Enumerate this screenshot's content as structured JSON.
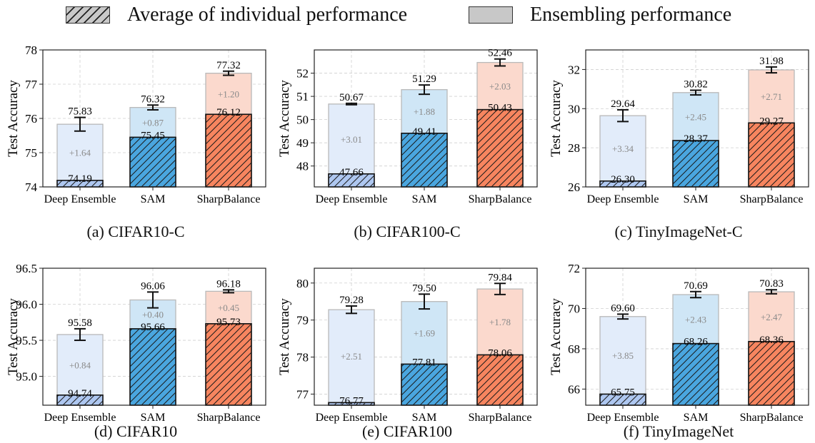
{
  "legend": {
    "individual_label": "Average of individual performance",
    "ensemble_label": "Ensembling performance"
  },
  "colors": {
    "deep_ensemble": "#aec7f0",
    "sam": "#4aa6df",
    "sharpbalance": "#f7855f",
    "deep_ensemble_light": "#e2ecfa",
    "sam_light": "#cfe6f6",
    "sharpbalance_light": "#fbd9cd"
  },
  "chart_data": [
    {
      "type": "bar",
      "caption": "(a) CIFAR10-C",
      "ylabel": "Test Accuracy",
      "categories": [
        "Deep Ensemble",
        "SAM",
        "SharpBalance"
      ],
      "ylim": [
        74,
        78
      ],
      "yticks": [
        "74",
        "75",
        "76",
        "77",
        "78"
      ],
      "series": [
        {
          "name": "Average of individual performance",
          "values": [
            74.19,
            75.45,
            76.12
          ]
        },
        {
          "name": "Ensembling performance",
          "values": [
            75.83,
            76.32,
            77.32
          ]
        }
      ],
      "gain_labels": [
        "+1.64",
        "+0.87",
        "+1.20"
      ],
      "individual_labels": [
        "74.19",
        "75.45",
        "76.12"
      ],
      "ensemble_labels": [
        "75.83",
        "76.32",
        "77.32"
      ],
      "error": [
        0.2,
        0.07,
        0.06
      ]
    },
    {
      "type": "bar",
      "caption": "(b) CIFAR100-C",
      "ylabel": "Test Accuracy",
      "categories": [
        "Deep Ensemble",
        "SAM",
        "SharpBalance"
      ],
      "ylim": [
        47.1,
        53.0
      ],
      "yticks": [
        "48",
        "49",
        "50",
        "51",
        "52"
      ],
      "series": [
        {
          "name": "Average of individual performance",
          "values": [
            47.66,
            49.41,
            50.43
          ]
        },
        {
          "name": "Ensembling performance",
          "values": [
            50.67,
            51.29,
            52.46
          ]
        }
      ],
      "gain_labels": [
        "+3.01",
        "+1.88",
        "+2.03"
      ],
      "individual_labels": [
        "47.66",
        "49.41",
        "50.43"
      ],
      "ensemble_labels": [
        "50.67",
        "51.29",
        "52.46"
      ],
      "error": [
        0.03,
        0.2,
        0.15
      ]
    },
    {
      "type": "bar",
      "caption": "(c) TinyImageNet-C",
      "ylabel": "Test Accuracy",
      "categories": [
        "Deep Ensemble",
        "SAM",
        "SharpBalance"
      ],
      "ylim": [
        26,
        33
      ],
      "yticks": [
        "26",
        "28",
        "30",
        "32"
      ],
      "series": [
        {
          "name": "Average of individual performance",
          "values": [
            26.3,
            28.37,
            29.27
          ]
        },
        {
          "name": "Ensembling performance",
          "values": [
            29.64,
            30.82,
            31.98
          ]
        }
      ],
      "gain_labels": [
        "+3.34",
        "+2.45",
        "+2.71"
      ],
      "individual_labels": [
        "26.30",
        "28.37",
        "29.27"
      ],
      "ensemble_labels": [
        "29.64",
        "30.82",
        "31.98"
      ],
      "error": [
        0.3,
        0.12,
        0.15
      ]
    },
    {
      "type": "bar",
      "caption": "(d) CIFAR10",
      "ylabel": "Test Accuracy",
      "categories": [
        "Deep Ensemble",
        "SAM",
        "SharpBalance"
      ],
      "ylim": [
        94.6,
        96.5
      ],
      "yticks": [
        "95.0",
        "95.5",
        "96.0",
        "96.5"
      ],
      "series": [
        {
          "name": "Average of individual performance",
          "values": [
            94.74,
            95.66,
            95.73
          ]
        },
        {
          "name": "Ensembling performance",
          "values": [
            95.58,
            96.06,
            96.18
          ]
        }
      ],
      "gain_labels": [
        "+0.84",
        "+0.40",
        "+0.45"
      ],
      "individual_labels": [
        "94.74",
        "95.66",
        "95.73"
      ],
      "ensemble_labels": [
        "95.58",
        "96.06",
        "96.18"
      ],
      "error": [
        0.08,
        0.11,
        0.02
      ]
    },
    {
      "type": "bar",
      "caption": "(e) CIFAR100",
      "ylabel": "Test Accuracy",
      "categories": [
        "Deep Ensemble",
        "SAM",
        "SharpBalance"
      ],
      "ylim": [
        76.7,
        80.4
      ],
      "yticks": [
        "77",
        "78",
        "79",
        "80"
      ],
      "series": [
        {
          "name": "Average of individual performance",
          "values": [
            76.77,
            77.81,
            78.06
          ]
        },
        {
          "name": "Ensembling performance",
          "values": [
            79.28,
            79.5,
            79.84
          ]
        }
      ],
      "gain_labels": [
        "+2.51",
        "+1.69",
        "+1.78"
      ],
      "individual_labels": [
        "76.77",
        "77.81",
        "78.06"
      ],
      "ensemble_labels": [
        "79.28",
        "79.50",
        "79.84"
      ],
      "error": [
        0.1,
        0.2,
        0.15
      ]
    },
    {
      "type": "bar",
      "caption": "(f) TinyImageNet",
      "ylabel": "Test Accuracy",
      "categories": [
        "Deep Ensemble",
        "SAM",
        "SharpBalance"
      ],
      "ylim": [
        65.2,
        72.0
      ],
      "yticks": [
        "66",
        "68",
        "70",
        "72"
      ],
      "series": [
        {
          "name": "Average of individual performance",
          "values": [
            65.75,
            68.26,
            68.36
          ]
        },
        {
          "name": "Ensembling performance",
          "values": [
            69.6,
            70.69,
            70.83
          ]
        }
      ],
      "gain_labels": [
        "+3.85",
        "+2.43",
        "+2.47"
      ],
      "individual_labels": [
        "65.75",
        "68.26",
        "68.36"
      ],
      "ensemble_labels": [
        "69.60",
        "70.69",
        "70.83"
      ],
      "error": [
        0.12,
        0.15,
        0.1
      ]
    }
  ]
}
